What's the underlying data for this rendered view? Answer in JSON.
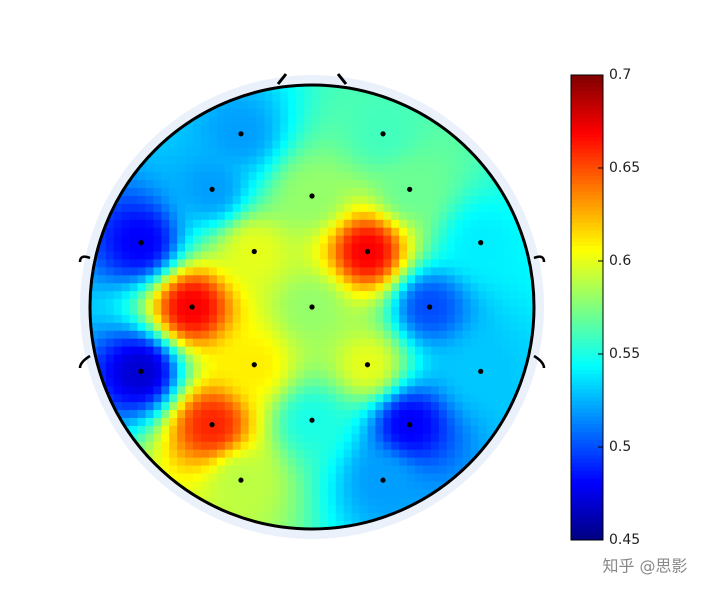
{
  "chart_data": {
    "type": "topoplot",
    "x": [
      -0.32,
      0.32,
      -0.45,
      0.0,
      0.44,
      -0.77,
      -0.26,
      0.25,
      0.76,
      -0.54,
      0.0,
      0.53,
      -0.77,
      -0.26,
      0.25,
      0.76,
      -0.45,
      0.0,
      0.44,
      -0.32,
      0.32
    ],
    "y": [
      0.78,
      0.78,
      0.53,
      0.5,
      0.53,
      0.29,
      0.25,
      0.25,
      0.29,
      0.0,
      0.0,
      0.0,
      -0.29,
      -0.26,
      -0.26,
      -0.29,
      -0.53,
      -0.51,
      -0.53,
      -0.78,
      -0.78
    ],
    "values": [
      0.52,
      0.56,
      0.52,
      0.58,
      0.57,
      0.48,
      0.6,
      0.67,
      0.54,
      0.67,
      0.58,
      0.5,
      0.47,
      0.61,
      0.6,
      0.53,
      0.66,
      0.55,
      0.48,
      0.59,
      0.52
    ],
    "clim": [
      0.45,
      0.7
    ],
    "cticks": [
      0.45,
      0.5,
      0.55,
      0.6,
      0.65,
      0.7
    ],
    "colormap": "jet"
  },
  "watermark": "知乎 @思影"
}
